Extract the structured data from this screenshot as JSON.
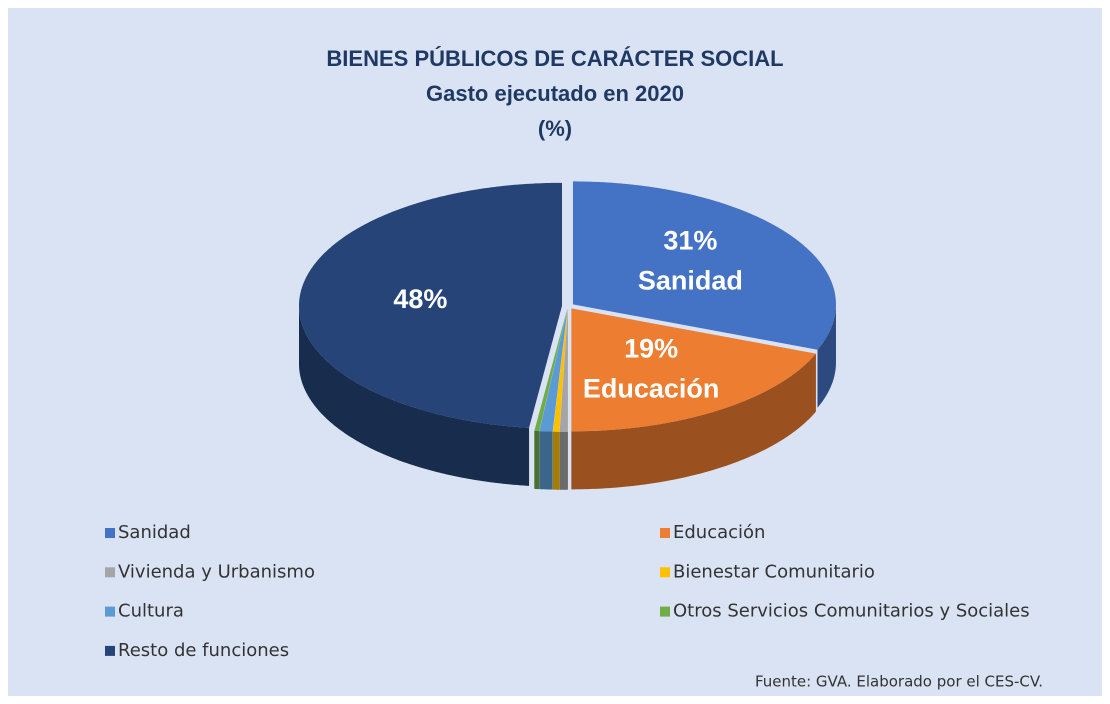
{
  "chart_data": {
    "type": "pie3d",
    "title": "BIENES PÚBLICOS DE CARÁCTER SOCIAL",
    "subtitle": "Gasto ejecutado en 2020",
    "unit_label": "(%)",
    "categories": [
      "Sanidad",
      "Educación",
      "Vivienda y Urbanismo",
      "Bienestar Comunitario",
      "Cultura",
      "Otros Servicios Comunitarios y Sociales",
      "Resto de funciones"
    ],
    "values": [
      31,
      19,
      0.5,
      0.4,
      0.8,
      0.3,
      48
    ],
    "value_labels": [
      "31%",
      "19%",
      null,
      null,
      null,
      null,
      "48%"
    ],
    "show_category_in_label": [
      true,
      true,
      false,
      false,
      false,
      false,
      false
    ],
    "colors": [
      "#4472c4",
      "#ed7d31",
      "#a5a5a5",
      "#ffc000",
      "#5b9bd5",
      "#70ad47",
      "#264478"
    ],
    "source": "Fuente: GVA. Elaborado por el CES-CV."
  }
}
